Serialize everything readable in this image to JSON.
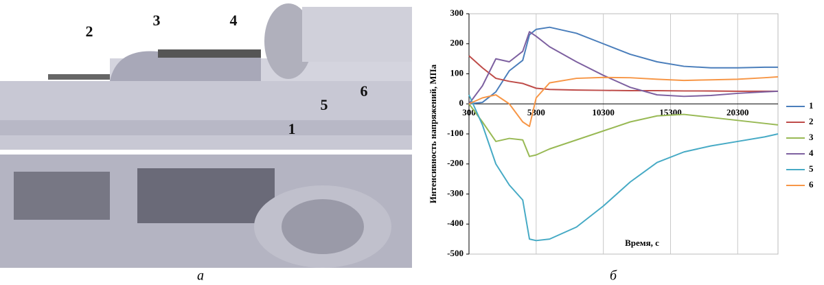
{
  "chart_data": {
    "type": "line",
    "x_label": "Время, с",
    "y_label": "Интенсивность напряжений, МПа",
    "x": [
      300,
      1300,
      2300,
      3300,
      4300,
      4800,
      5300,
      6300,
      8300,
      10300,
      12300,
      14300,
      16300,
      18300,
      20300,
      22300,
      23300
    ],
    "series": [
      {
        "name": "1",
        "color": "#4a7ebb",
        "values": [
          0,
          5,
          40,
          110,
          145,
          230,
          248,
          255,
          235,
          200,
          165,
          140,
          125,
          120,
          120,
          122,
          122
        ]
      },
      {
        "name": "2",
        "color": "#be4b48",
        "values": [
          160,
          120,
          85,
          75,
          68,
          60,
          52,
          48,
          46,
          45,
          44,
          44,
          43,
          43,
          42,
          42,
          42
        ]
      },
      {
        "name": "3",
        "color": "#98b954",
        "values": [
          0,
          -60,
          -125,
          -115,
          -120,
          -175,
          -170,
          -150,
          -120,
          -90,
          -60,
          -40,
          -35,
          -45,
          -55,
          -65,
          -70
        ]
      },
      {
        "name": "4",
        "color": "#7d60a0",
        "values": [
          0,
          60,
          150,
          140,
          175,
          240,
          225,
          190,
          140,
          95,
          55,
          30,
          25,
          28,
          35,
          40,
          42
        ]
      },
      {
        "name": "5",
        "color": "#46aac5",
        "values": [
          30,
          -70,
          -200,
          -270,
          -320,
          -450,
          -455,
          -450,
          -410,
          -340,
          -260,
          -195,
          -160,
          -140,
          -125,
          -110,
          -100
        ]
      },
      {
        "name": "6",
        "color": "#f79646",
        "values": [
          0,
          20,
          30,
          0,
          -60,
          -75,
          20,
          70,
          85,
          88,
          87,
          82,
          78,
          80,
          82,
          87,
          90
        ]
      }
    ],
    "xlim": [
      300,
      23300
    ],
    "xticks": [
      300,
      5300,
      10300,
      15300,
      20300
    ],
    "ylim": [
      -500,
      300
    ],
    "yticks": [
      -500,
      -400,
      -300,
      -200,
      -100,
      0,
      100,
      200,
      300
    ],
    "grid": "x",
    "legend": "right"
  },
  "figure": {
    "labels": [
      "1",
      "2",
      "3",
      "4",
      "5",
      "6"
    ],
    "captions": [
      "а",
      "б"
    ]
  }
}
